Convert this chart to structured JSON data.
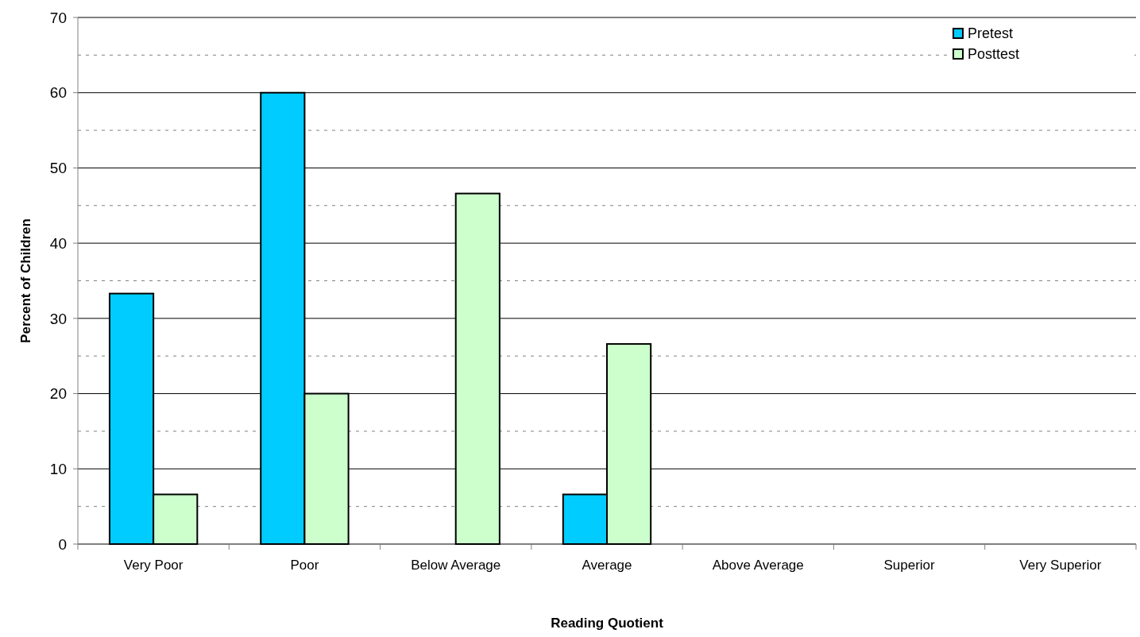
{
  "chart_data": {
    "type": "bar",
    "xlabel": "Reading Quotient",
    "ylabel": "Percent of Children",
    "categories": [
      "Very Poor",
      "Poor",
      "Below Average",
      "Average",
      "Above Average",
      "Superior",
      "Very Superior"
    ],
    "series": [
      {
        "name": "Pretest",
        "color": "#00ccff",
        "values": [
          33.3,
          60,
          0,
          6.6,
          0,
          0,
          0
        ]
      },
      {
        "name": "Posttest",
        "color": "#ccffcc",
        "values": [
          6.6,
          20,
          46.6,
          26.6,
          0,
          0,
          0
        ]
      }
    ],
    "ylim": [
      0,
      70
    ],
    "yticks": [
      0,
      {
        "value": 5,
        "label": null
      },
      10,
      {
        "value": 15,
        "label": null
      },
      20,
      {
        "value": 25,
        "label": null
      },
      30,
      {
        "value": 35,
        "label": null
      },
      40,
      {
        "value": 45,
        "label": null
      },
      50,
      {
        "value": 55,
        "label": null
      },
      60,
      {
        "value": 65,
        "label": null
      },
      70
    ],
    "grid": "y",
    "legend": "top right"
  }
}
